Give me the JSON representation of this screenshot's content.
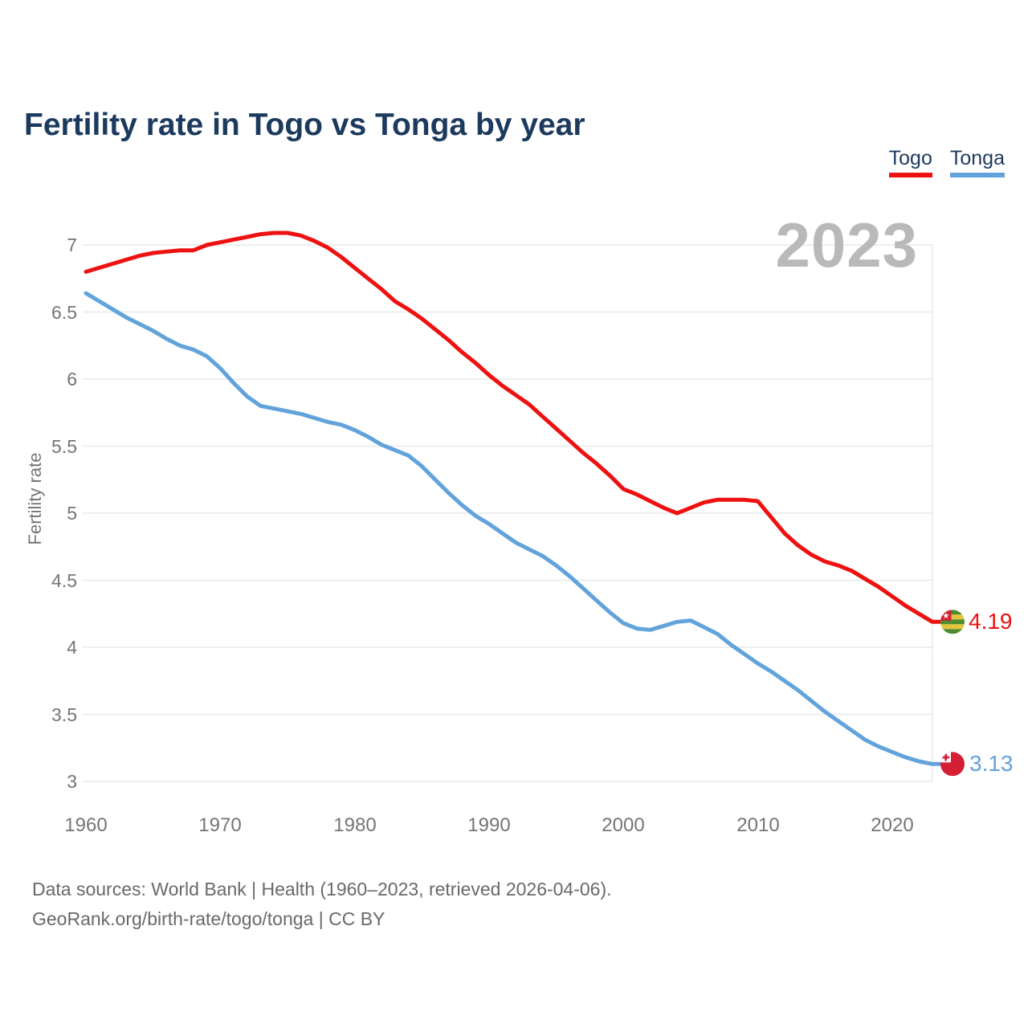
{
  "title": "Fertility rate in Togo vs Tonga by year",
  "legend": [
    {
      "label": "Togo",
      "color": "#ee1111"
    },
    {
      "label": "Tonga",
      "color": "#62a3dc"
    }
  ],
  "watermark": "2023",
  "end_labels": [
    {
      "series": "Togo",
      "value": "4.19",
      "color": "#ee1111",
      "flag": "togo-flag"
    },
    {
      "series": "Tonga",
      "value": "3.13",
      "color": "#62a3dc",
      "flag": "tonga-flag"
    }
  ],
  "footer": {
    "line1": "Data sources: World Bank | Health (1960–2023, retrieved 2026-04-06).",
    "line2": "GeoRank.org/birth-rate/togo/tonga | CC BY"
  },
  "chart_data": {
    "type": "line",
    "title": "Fertility rate in Togo vs Tonga by year",
    "xlabel": "",
    "ylabel": "Fertility rate",
    "ylim": [
      3,
      7
    ],
    "xlim": [
      1960,
      2023
    ],
    "grid": "horizontal",
    "legend_position": "top-right",
    "ytick_labels": [
      "7",
      "6.5",
      "6",
      "5.5",
      "5",
      "4.5",
      "4",
      "3.5",
      "3"
    ],
    "ytick_values": [
      7,
      6.5,
      6,
      5.5,
      5,
      4.5,
      4,
      3.5,
      3
    ],
    "xtick_labels": [
      "1960",
      "1970",
      "1980",
      "1990",
      "2000",
      "2010",
      "2020"
    ],
    "xtick_values": [
      1960,
      1970,
      1980,
      1990,
      2000,
      2010,
      2020
    ],
    "x": [
      1960,
      1961,
      1962,
      1963,
      1964,
      1965,
      1966,
      1967,
      1968,
      1969,
      1970,
      1971,
      1972,
      1973,
      1974,
      1975,
      1976,
      1977,
      1978,
      1979,
      1980,
      1981,
      1982,
      1983,
      1984,
      1985,
      1986,
      1987,
      1988,
      1989,
      1990,
      1991,
      1992,
      1993,
      1994,
      1995,
      1996,
      1997,
      1998,
      1999,
      2000,
      2001,
      2002,
      2003,
      2004,
      2005,
      2006,
      2007,
      2008,
      2009,
      2010,
      2011,
      2012,
      2013,
      2014,
      2015,
      2016,
      2017,
      2018,
      2019,
      2020,
      2021,
      2022,
      2023
    ],
    "series": [
      {
        "name": "Togo",
        "color": "#ee1111",
        "final_value": 4.19,
        "values": [
          6.8,
          6.83,
          6.86,
          6.89,
          6.92,
          6.94,
          6.95,
          6.96,
          6.96,
          7.0,
          7.02,
          7.04,
          7.06,
          7.08,
          7.09,
          7.09,
          7.07,
          7.03,
          6.98,
          6.91,
          6.83,
          6.75,
          6.67,
          6.58,
          6.52,
          6.45,
          6.37,
          6.29,
          6.2,
          6.12,
          6.03,
          5.95,
          5.88,
          5.81,
          5.72,
          5.63,
          5.54,
          5.45,
          5.37,
          5.28,
          5.18,
          5.14,
          5.09,
          5.04,
          5.0,
          5.04,
          5.08,
          5.1,
          5.1,
          5.1,
          5.09,
          4.97,
          4.85,
          4.76,
          4.69,
          4.64,
          4.61,
          4.57,
          4.51,
          4.45,
          4.38,
          4.31,
          4.25,
          4.19
        ]
      },
      {
        "name": "Tonga",
        "color": "#62a3dc",
        "final_value": 3.13,
        "values": [
          6.64,
          6.58,
          6.52,
          6.46,
          6.41,
          6.36,
          6.3,
          6.25,
          6.22,
          6.17,
          6.08,
          5.97,
          5.87,
          5.8,
          5.78,
          5.76,
          5.74,
          5.71,
          5.68,
          5.66,
          5.62,
          5.57,
          5.51,
          5.47,
          5.43,
          5.35,
          5.25,
          5.15,
          5.06,
          4.98,
          4.92,
          4.85,
          4.78,
          4.73,
          4.68,
          4.61,
          4.53,
          4.44,
          4.35,
          4.26,
          4.18,
          4.14,
          4.13,
          4.16,
          4.19,
          4.2,
          4.15,
          4.1,
          4.02,
          3.95,
          3.88,
          3.82,
          3.75,
          3.68,
          3.6,
          3.52,
          3.45,
          3.38,
          3.31,
          3.26,
          3.22,
          3.18,
          3.15,
          3.13
        ]
      }
    ]
  }
}
